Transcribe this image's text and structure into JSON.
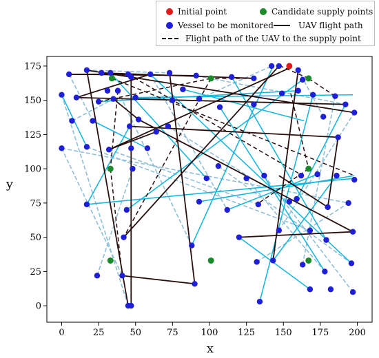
{
  "chart_data": {
    "type": "scatter",
    "xlabel": "x",
    "ylabel": "y",
    "xlim": [
      -10,
      210
    ],
    "ylim": [
      -12,
      182
    ],
    "xticks": [
      0,
      25,
      50,
      75,
      100,
      125,
      150,
      175,
      200
    ],
    "yticks": [
      0,
      25,
      50,
      75,
      100,
      125,
      150,
      175
    ],
    "grid": false,
    "legend_position": "top-right",
    "legend": {
      "initial": "Initial point",
      "candidate": "Candidate supply points",
      "vessel": "Vessel to be monitored",
      "uav": "UAV flight path",
      "supply": "Flight path of the UAV to the supply point"
    },
    "colors": {
      "initial": "#e31a1c",
      "candidate": "#1a8a2a",
      "vessel": "#1f1fd6",
      "uav_path": "#2a0f0f",
      "path_cyan": "#1ab7dd",
      "path_light": "#8fbfd6"
    },
    "initial_point": [
      154,
      175
    ],
    "candidate_points": [
      [
        33,
        33
      ],
      [
        33,
        100
      ],
      [
        34,
        166
      ],
      [
        101,
        33
      ],
      [
        101,
        166
      ],
      [
        167,
        33
      ],
      [
        167,
        100
      ],
      [
        167,
        166
      ]
    ],
    "vessels": [
      [
        5,
        169
      ],
      [
        17,
        172
      ],
      [
        27,
        170
      ],
      [
        45,
        169
      ],
      [
        60,
        169
      ],
      [
        73,
        170
      ],
      [
        91,
        168
      ],
      [
        115,
        167
      ],
      [
        130,
        166
      ],
      [
        142,
        175
      ],
      [
        147,
        175
      ],
      [
        160,
        172
      ],
      [
        163,
        165
      ],
      [
        170,
        154
      ],
      [
        185,
        153
      ],
      [
        192,
        147
      ],
      [
        198,
        141
      ],
      [
        0,
        154
      ],
      [
        7,
        135
      ],
      [
        10,
        152
      ],
      [
        17,
        116
      ],
      [
        21,
        135
      ],
      [
        25,
        149
      ],
      [
        31,
        157
      ],
      [
        33,
        170
      ],
      [
        35,
        151
      ],
      [
        38,
        157
      ],
      [
        47,
        167
      ],
      [
        50,
        152
      ],
      [
        46,
        131
      ],
      [
        52,
        136
      ],
      [
        47,
        115
      ],
      [
        58,
        115
      ],
      [
        64,
        127
      ],
      [
        72,
        131
      ],
      [
        75,
        150
      ],
      [
        82,
        158
      ],
      [
        93,
        151
      ],
      [
        107,
        145
      ],
      [
        130,
        147
      ],
      [
        149,
        155
      ],
      [
        160,
        157
      ],
      [
        177,
        138
      ],
      [
        187,
        123
      ],
      [
        0,
        115
      ],
      [
        32,
        114
      ],
      [
        48,
        100
      ],
      [
        98,
        93
      ],
      [
        106,
        102
      ],
      [
        125,
        93
      ],
      [
        137,
        95
      ],
      [
        162,
        95
      ],
      [
        173,
        96
      ],
      [
        186,
        95
      ],
      [
        198,
        92
      ],
      [
        17,
        74
      ],
      [
        44,
        70
      ],
      [
        93,
        76
      ],
      [
        112,
        70
      ],
      [
        133,
        74
      ],
      [
        154,
        76
      ],
      [
        159,
        78
      ],
      [
        180,
        72
      ],
      [
        194,
        75
      ],
      [
        42,
        50
      ],
      [
        88,
        44
      ],
      [
        120,
        50
      ],
      [
        147,
        55
      ],
      [
        168,
        55
      ],
      [
        179,
        48
      ],
      [
        197,
        54
      ],
      [
        24,
        22
      ],
      [
        41,
        22
      ],
      [
        45,
        0
      ],
      [
        47,
        0
      ],
      [
        90,
        16
      ],
      [
        132,
        32
      ],
      [
        134,
        3
      ],
      [
        143,
        33
      ],
      [
        163,
        30
      ],
      [
        168,
        12
      ],
      [
        178,
        25
      ],
      [
        182,
        12
      ],
      [
        196,
        31
      ],
      [
        197,
        10
      ]
    ],
    "uav_path_segments": [
      [
        [
          5,
          169
        ],
        [
          45,
          169
        ]
      ],
      [
        [
          5,
          169
        ],
        [
          91,
          168
        ]
      ],
      [
        [
          27,
          170
        ],
        [
          130,
          166
        ]
      ],
      [
        [
          10,
          152
        ],
        [
          60,
          169
        ]
      ],
      [
        [
          17,
          172
        ],
        [
          45,
          0
        ]
      ],
      [
        [
          47,
          0
        ],
        [
          47,
          167
        ]
      ],
      [
        [
          35,
          151
        ],
        [
          52,
          136
        ]
      ],
      [
        [
          32,
          114
        ],
        [
          64,
          127
        ]
      ],
      [
        [
          32,
          114
        ],
        [
          155,
          174
        ]
      ],
      [
        [
          46,
          131
        ],
        [
          187,
          123
        ]
      ],
      [
        [
          187,
          123
        ],
        [
          180,
          72
        ]
      ],
      [
        [
          180,
          72
        ],
        [
          147,
          95
        ]
      ],
      [
        [
          41,
          22
        ],
        [
          90,
          16
        ]
      ],
      [
        [
          90,
          16
        ],
        [
          73,
          170
        ]
      ],
      [
        [
          42,
          50
        ],
        [
          147,
          175
        ]
      ],
      [
        [
          120,
          50
        ],
        [
          197,
          54
        ]
      ],
      [
        [
          197,
          54
        ],
        [
          52,
          136
        ]
      ],
      [
        [
          143,
          33
        ],
        [
          160,
          172
        ]
      ],
      [
        [
          17,
          172
        ],
        [
          198,
          141
        ]
      ],
      [
        [
          10,
          152
        ],
        [
          192,
          147
        ]
      ]
    ],
    "supply_path_segments": [
      [
        [
          38,
          157
        ],
        [
          33,
          100
        ]
      ],
      [
        [
          33,
          100
        ],
        [
          41,
          22
        ]
      ],
      [
        [
          130,
          166
        ],
        [
          101,
          166
        ]
      ],
      [
        [
          101,
          166
        ],
        [
          42,
          50
        ]
      ],
      [
        [
          185,
          153
        ],
        [
          167,
          166
        ]
      ],
      [
        [
          167,
          166
        ],
        [
          148,
          175
        ]
      ],
      [
        [
          155,
          155
        ],
        [
          167,
          100
        ]
      ],
      [
        [
          167,
          100
        ],
        [
          132,
          74
        ]
      ],
      [
        [
          34,
          166
        ],
        [
          198,
          95
        ]
      ],
      [
        [
          45,
          169
        ],
        [
          163,
          95
        ]
      ],
      [
        [
          25,
          149
        ],
        [
          101,
          166
        ]
      ]
    ],
    "cyan_path_segments": [
      [
        [
          0,
          154
        ],
        [
          17,
          116
        ]
      ],
      [
        [
          21,
          135
        ],
        [
          58,
          115
        ]
      ],
      [
        [
          50,
          152
        ],
        [
          197,
          154
        ]
      ],
      [
        [
          75,
          150
        ],
        [
          50,
          152
        ]
      ],
      [
        [
          25,
          149
        ],
        [
          160,
          157
        ]
      ],
      [
        [
          17,
          74
        ],
        [
          198,
          93
        ]
      ],
      [
        [
          44,
          70
        ],
        [
          163,
          165
        ]
      ],
      [
        [
          88,
          44
        ],
        [
          143,
          175
        ]
      ],
      [
        [
          134,
          3
        ],
        [
          170,
          154
        ]
      ],
      [
        [
          93,
          76
        ],
        [
          198,
          95
        ]
      ],
      [
        [
          107,
          145
        ],
        [
          178,
          25
        ]
      ],
      [
        [
          112,
          70
        ],
        [
          173,
          96
        ]
      ],
      [
        [
          120,
          50
        ],
        [
          168,
          12
        ]
      ],
      [
        [
          143,
          33
        ],
        [
          186,
          95
        ]
      ],
      [
        [
          33,
          170
        ],
        [
          98,
          93
        ]
      ],
      [
        [
          60,
          169
        ],
        [
          196,
          31
        ]
      ],
      [
        [
          115,
          167
        ],
        [
          179,
          48
        ]
      ],
      [
        [
          82,
          158
        ],
        [
          164,
          135
        ]
      ],
      [
        [
          17,
          74
        ],
        [
          46,
          131
        ]
      ],
      [
        [
          159,
          78
        ],
        [
          192,
          147
        ]
      ]
    ],
    "light_path_segments": [
      [
        [
          0,
          154
        ],
        [
          45,
          0
        ]
      ],
      [
        [
          7,
          135
        ],
        [
          35,
          151
        ]
      ],
      [
        [
          0,
          115
        ],
        [
          41,
          22
        ]
      ],
      [
        [
          24,
          22
        ],
        [
          48,
          100
        ]
      ],
      [
        [
          0,
          115
        ],
        [
          194,
          75
        ]
      ],
      [
        [
          32,
          114
        ],
        [
          133,
          74
        ]
      ],
      [
        [
          17,
          116
        ],
        [
          168,
          55
        ]
      ],
      [
        [
          106,
          102
        ],
        [
          196,
          31
        ]
      ],
      [
        [
          137,
          95
        ],
        [
          197,
          10
        ]
      ],
      [
        [
          125,
          93
        ],
        [
          178,
          25
        ]
      ],
      [
        [
          147,
          55
        ],
        [
          198,
          141
        ]
      ],
      [
        [
          163,
          30
        ],
        [
          185,
          153
        ]
      ],
      [
        [
          132,
          32
        ],
        [
          194,
          75
        ]
      ],
      [
        [
          72,
          131
        ],
        [
          154,
          76
        ]
      ],
      [
        [
          93,
          151
        ],
        [
          142,
          175
        ]
      ],
      [
        [
          91,
          168
        ],
        [
          192,
          147
        ]
      ],
      [
        [
          17,
          172
        ],
        [
          73,
          170
        ]
      ],
      [
        [
          160,
          172
        ],
        [
          177,
          138
        ]
      ],
      [
        [
          5,
          169
        ],
        [
          21,
          135
        ]
      ],
      [
        [
          60,
          169
        ],
        [
          112,
          70
        ]
      ],
      [
        [
          38,
          157
        ],
        [
          88,
          44
        ]
      ]
    ]
  }
}
